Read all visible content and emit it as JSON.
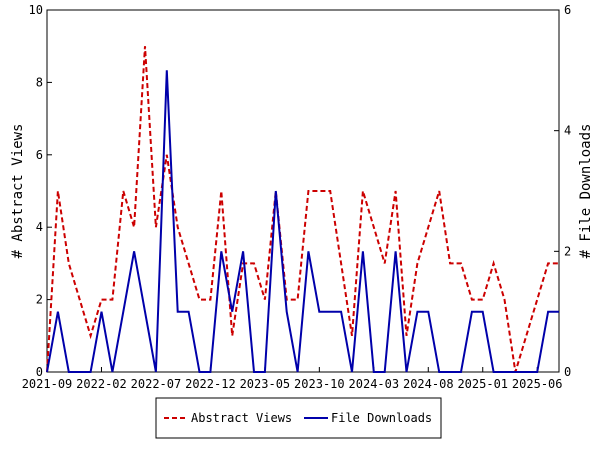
{
  "chart_data": {
    "type": "line",
    "x_ticks": [
      "2021-09",
      "2022-02",
      "2022-07",
      "2022-12",
      "2023-05",
      "2023-10",
      "2024-03",
      "2024-08",
      "2025-01",
      "2025-06"
    ],
    "x_range": [
      "2021-09",
      "2025-08"
    ],
    "y_left": {
      "label": "# Abstract Views",
      "range": [
        0,
        10
      ],
      "ticks": [
        0,
        2,
        4,
        6,
        8,
        10
      ]
    },
    "y_right": {
      "label": "# File Downloads",
      "range": [
        0,
        6
      ],
      "ticks": [
        0,
        2,
        4,
        6
      ]
    },
    "grid": false,
    "legend_position": "bottom",
    "series": [
      {
        "name": "Abstract Views",
        "axis": "left",
        "color": "#cc0000",
        "dash": "dashed",
        "x": [
          "2021-09",
          "2021-10",
          "2021-11",
          "2021-12",
          "2022-01",
          "2022-02",
          "2022-03",
          "2022-04",
          "2022-05",
          "2022-06",
          "2022-07",
          "2022-08",
          "2022-09",
          "2022-10",
          "2022-11",
          "2022-12",
          "2023-01",
          "2023-02",
          "2023-03",
          "2023-04",
          "2023-05",
          "2023-06",
          "2023-07",
          "2023-08",
          "2023-09",
          "2023-10",
          "2023-11",
          "2023-12",
          "2024-01",
          "2024-02",
          "2024-03",
          "2024-04",
          "2024-05",
          "2024-06",
          "2024-07",
          "2024-08",
          "2024-09",
          "2024-10",
          "2024-11",
          "2024-12",
          "2025-01",
          "2025-02",
          "2025-03",
          "2025-04",
          "2025-05",
          "2025-06",
          "2025-07",
          "2025-08"
        ],
        "values": [
          0,
          5,
          3,
          2,
          1,
          2,
          2,
          5,
          4,
          9,
          4,
          6,
          4,
          3,
          2,
          2,
          5,
          1,
          3,
          3,
          2,
          5,
          2,
          2,
          5,
          5,
          5,
          3,
          1,
          5,
          4,
          3,
          5,
          1,
          3,
          4,
          5,
          3,
          3,
          2,
          2,
          3,
          2,
          0,
          1,
          2,
          3,
          3
        ]
      },
      {
        "name": "File Downloads",
        "axis": "right",
        "color": "#0000aa",
        "dash": "solid",
        "x": [
          "2021-09",
          "2021-10",
          "2021-11",
          "2021-12",
          "2022-01",
          "2022-02",
          "2022-03",
          "2022-04",
          "2022-05",
          "2022-06",
          "2022-07",
          "2022-08",
          "2022-09",
          "2022-10",
          "2022-11",
          "2022-12",
          "2023-01",
          "2023-02",
          "2023-03",
          "2023-04",
          "2023-05",
          "2023-06",
          "2023-07",
          "2023-08",
          "2023-09",
          "2023-10",
          "2023-11",
          "2023-12",
          "2024-01",
          "2024-02",
          "2024-03",
          "2024-04",
          "2024-05",
          "2024-06",
          "2024-07",
          "2024-08",
          "2024-09",
          "2024-10",
          "2024-11",
          "2024-12",
          "2025-01",
          "2025-02",
          "2025-03",
          "2025-04",
          "2025-05",
          "2025-06",
          "2025-07",
          "2025-08"
        ],
        "values": [
          0,
          1,
          0,
          0,
          0,
          1,
          0,
          1,
          2,
          1,
          0,
          5,
          1,
          1,
          0,
          0,
          2,
          1,
          2,
          0,
          0,
          3,
          1,
          0,
          2,
          1,
          1,
          1,
          0,
          2,
          0,
          0,
          2,
          0,
          1,
          1,
          0,
          0,
          0,
          1,
          1,
          0,
          0,
          0,
          0,
          0,
          1,
          1
        ]
      }
    ]
  }
}
